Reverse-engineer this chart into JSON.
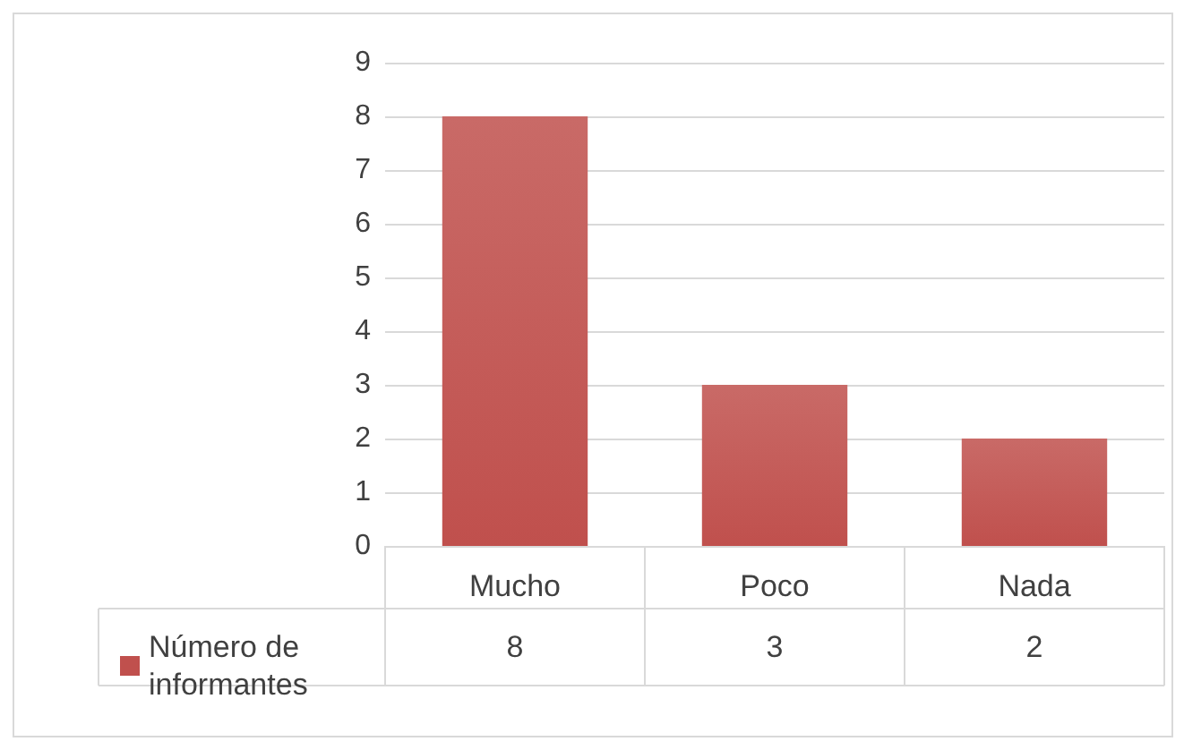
{
  "chart_data": {
    "type": "bar",
    "categories": [
      "Mucho",
      "Poco",
      "Nada"
    ],
    "series": [
      {
        "name": "Número de informantes",
        "color": "#c0504d",
        "values": [
          8,
          3,
          2
        ]
      }
    ],
    "ylim": [
      0,
      9
    ],
    "yticks": [
      0,
      1,
      2,
      3,
      4,
      5,
      6,
      7,
      8,
      9
    ],
    "grid": "y",
    "legend": "bottom left",
    "data_labels": true
  }
}
